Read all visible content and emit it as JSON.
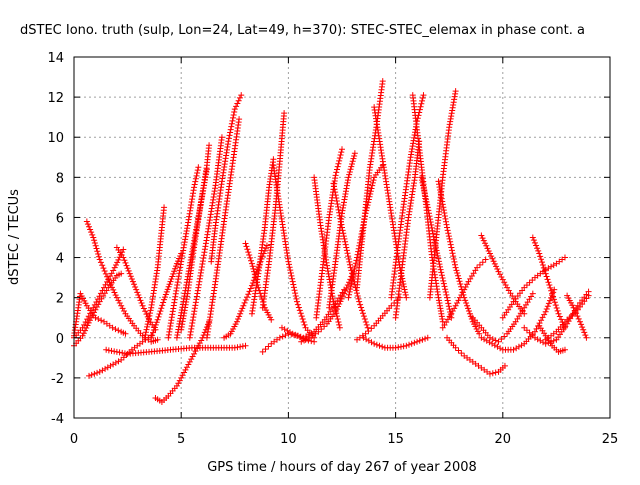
{
  "chart_data": {
    "type": "scatter",
    "title": "dSTEC Iono. truth (sulp, Lon=24, Lat=49, h=370): STEC-STEC_elemax in phase cont. a",
    "xlabel": "GPS time / hours of day 267 of year 2008",
    "ylabel": "dSTEC  / TECUs",
    "xlim": [
      0,
      25
    ],
    "ylim": [
      -4,
      14
    ],
    "x_ticks": [
      0,
      5,
      10,
      15,
      20,
      25
    ],
    "y_ticks": [
      -4,
      -2,
      0,
      2,
      4,
      6,
      8,
      10,
      12,
      14
    ],
    "x_tick_labels": [
      "0",
      "5",
      "10",
      "15",
      "20",
      "25"
    ],
    "y_tick_labels": [
      "-4",
      "-2",
      "0",
      "2",
      "4",
      "6",
      "8",
      "10",
      "12",
      "14"
    ],
    "grid": true,
    "marker": "+",
    "color": "#ff0000",
    "series": [
      {
        "x": [
          0.6,
          0.9,
          1.2,
          1.6,
          2.0,
          2.4,
          2.8,
          3.2,
          3.6,
          3.9
        ],
        "y": [
          5.8,
          5.0,
          3.9,
          2.9,
          2.0,
          1.2,
          0.6,
          0.1,
          -0.2,
          -0.1
        ]
      },
      {
        "x": [
          0.0,
          0.3,
          0.6,
          1.0,
          1.4,
          1.8,
          2.2,
          2.4
        ],
        "y": [
          0.1,
          2.2,
          1.6,
          1.0,
          0.8,
          0.5,
          0.3,
          0.2
        ]
      },
      {
        "x": [
          0.0,
          0.4,
          0.9,
          1.4,
          1.9,
          2.3
        ],
        "y": [
          0.0,
          0.5,
          1.5,
          2.5,
          3.5,
          4.4
        ]
      },
      {
        "x": [
          0.0,
          0.4,
          0.8,
          1.2,
          1.6,
          2.0,
          2.2
        ],
        "y": [
          -0.4,
          0.1,
          1.0,
          1.8,
          2.5,
          3.1,
          3.2
        ]
      },
      {
        "x": [
          2.0,
          2.3,
          2.6,
          2.9,
          3.2,
          3.5,
          3.8
        ],
        "y": [
          4.5,
          4.0,
          3.2,
          2.4,
          1.6,
          0.9,
          0.4
        ]
      },
      {
        "x": [
          0.7,
          1.2,
          1.7,
          2.2,
          2.7,
          3.2,
          3.6
        ],
        "y": [
          -1.9,
          -1.7,
          -1.4,
          -1.1,
          -0.6,
          -0.2,
          0.1
        ]
      },
      {
        "x": [
          1.5,
          2.5,
          3.5,
          4.5,
          5.5,
          6.5,
          7.5,
          8.0
        ],
        "y": [
          -0.6,
          -0.8,
          -0.7,
          -0.6,
          -0.5,
          -0.5,
          -0.5,
          -0.4
        ]
      },
      {
        "x": [
          3.8,
          4.1,
          4.4,
          4.8,
          5.2,
          5.6,
          6.0,
          6.3
        ],
        "y": [
          -3.0,
          -3.2,
          -2.9,
          -2.4,
          -1.6,
          -0.8,
          0.0,
          0.8
        ]
      },
      {
        "x": [
          3.3,
          3.6,
          3.9,
          4.1,
          4.2
        ],
        "y": [
          0.0,
          1.5,
          3.5,
          5.5,
          6.5
        ]
      },
      {
        "x": [
          3.6,
          3.9,
          4.2,
          4.5,
          4.8,
          5.0
        ],
        "y": [
          0.0,
          0.9,
          1.9,
          2.8,
          3.7,
          4.2
        ]
      },
      {
        "x": [
          4.4,
          4.7,
          5.0,
          5.3,
          5.6,
          5.8
        ],
        "y": [
          0.0,
          1.9,
          3.8,
          5.6,
          7.5,
          8.5
        ]
      },
      {
        "x": [
          4.8,
          5.1,
          5.4,
          5.7,
          6.0,
          6.2
        ],
        "y": [
          0.0,
          1.8,
          3.6,
          5.4,
          7.2,
          8.4
        ]
      },
      {
        "x": [
          5.0,
          5.3,
          5.6,
          5.9,
          6.2,
          6.3
        ],
        "y": [
          0.4,
          2.2,
          4.5,
          6.6,
          8.6,
          9.6
        ]
      },
      {
        "x": [
          5.4,
          5.8,
          6.2,
          6.6,
          6.9
        ],
        "y": [
          0.0,
          2.5,
          5.0,
          7.6,
          10.0
        ]
      },
      {
        "x": [
          6.2,
          6.6,
          7.0,
          7.4,
          7.7
        ],
        "y": [
          0.0,
          2.8,
          5.8,
          8.7,
          10.9
        ]
      },
      {
        "x": [
          6.4,
          6.6,
          6.9,
          7.2,
          7.5,
          7.8
        ],
        "y": [
          3.8,
          5.6,
          7.8,
          9.8,
          11.4,
          12.1
        ]
      },
      {
        "x": [
          7.0,
          7.3,
          7.6,
          7.9,
          8.3,
          8.7,
          9.0
        ],
        "y": [
          0.0,
          0.2,
          0.8,
          1.6,
          2.6,
          3.8,
          4.6
        ]
      },
      {
        "x": [
          8.0,
          8.3,
          8.6,
          8.9,
          9.2
        ],
        "y": [
          4.7,
          3.7,
          2.5,
          1.5,
          0.9
        ]
      },
      {
        "x": [
          8.8,
          9.2,
          9.6,
          10.0,
          10.4,
          10.8,
          11.2
        ],
        "y": [
          -0.7,
          -0.3,
          0.0,
          0.2,
          0.1,
          -0.1,
          -0.2
        ]
      },
      {
        "x": [
          8.3,
          8.6,
          8.9,
          9.1,
          9.3
        ],
        "y": [
          1.2,
          3.2,
          5.5,
          7.5,
          8.9
        ]
      },
      {
        "x": [
          8.8,
          9.1,
          9.4,
          9.6,
          9.8
        ],
        "y": [
          1.5,
          3.8,
          6.5,
          8.8,
          11.2
        ]
      },
      {
        "x": [
          9.3,
          9.6,
          10.0,
          10.4,
          10.8,
          11.2
        ],
        "y": [
          8.6,
          6.5,
          3.8,
          1.8,
          0.5,
          0.0
        ]
      },
      {
        "x": [
          9.7,
          10.2,
          10.7,
          11.2,
          11.7,
          12.2,
          12.6
        ],
        "y": [
          0.5,
          0.2,
          0.0,
          0.3,
          0.9,
          1.7,
          2.4
        ]
      },
      {
        "x": [
          10.6,
          11.0,
          11.4,
          11.8,
          12.2,
          12.6,
          13.0
        ],
        "y": [
          -0.2,
          0.0,
          0.3,
          0.7,
          1.3,
          2.2,
          3.2
        ]
      },
      {
        "x": [
          11.3,
          11.6,
          11.9,
          12.2,
          12.5
        ],
        "y": [
          1.0,
          3.5,
          6.0,
          8.1,
          9.4
        ]
      },
      {
        "x": [
          11.2,
          11.5,
          11.8,
          12.1,
          12.4
        ],
        "y": [
          8.0,
          5.6,
          3.6,
          1.8,
          0.5
        ]
      },
      {
        "x": [
          11.9,
          12.2,
          12.5,
          12.8,
          13.1
        ],
        "y": [
          1.5,
          3.8,
          6.2,
          8.0,
          9.2
        ]
      },
      {
        "x": [
          12.1,
          12.5,
          12.9,
          13.3,
          13.7
        ],
        "y": [
          7.7,
          5.5,
          3.5,
          1.8,
          0.5
        ]
      },
      {
        "x": [
          12.8,
          13.2,
          13.6,
          14.0,
          14.4
        ],
        "y": [
          2.0,
          4.0,
          6.2,
          8.0,
          8.6
        ]
      },
      {
        "x": [
          13.2,
          13.5,
          13.8,
          14.1,
          14.4
        ],
        "y": [
          2.5,
          5.5,
          8.5,
          10.5,
          12.8
        ]
      },
      {
        "x": [
          14.0,
          14.3,
          14.6,
          14.9,
          15.2,
          15.5
        ],
        "y": [
          11.5,
          9.5,
          7.5,
          5.5,
          3.5,
          2.0
        ]
      },
      {
        "x": [
          13.2,
          13.6,
          14.0,
          14.4,
          14.8,
          15.2
        ],
        "y": [
          -0.1,
          0.2,
          0.6,
          1.1,
          1.6,
          2.0
        ]
      },
      {
        "x": [
          13.5,
          14.0,
          14.5,
          15.0,
          15.5,
          16.0,
          16.5
        ],
        "y": [
          0.0,
          -0.3,
          -0.5,
          -0.5,
          -0.4,
          -0.2,
          0.0
        ]
      },
      {
        "x": [
          14.8,
          15.1,
          15.4,
          15.7,
          16.0,
          16.3
        ],
        "y": [
          2.0,
          4.5,
          6.8,
          9.0,
          10.8,
          12.1
        ]
      },
      {
        "x": [
          15.0,
          15.3,
          15.6,
          15.9,
          16.1
        ],
        "y": [
          1.0,
          3.5,
          6.0,
          8.0,
          9.8
        ]
      },
      {
        "x": [
          15.8,
          16.1,
          16.4,
          16.7,
          17.0,
          17.2
        ],
        "y": [
          12.1,
          9.5,
          6.8,
          4.0,
          2.0,
          0.8
        ]
      },
      {
        "x": [
          16.2,
          16.5,
          16.8,
          17.1,
          17.4,
          17.6
        ],
        "y": [
          8.0,
          6.5,
          4.9,
          3.4,
          2.0,
          1.0
        ]
      },
      {
        "x": [
          16.6,
          16.9,
          17.2,
          17.5,
          17.8
        ],
        "y": [
          2.0,
          5.0,
          8.0,
          10.5,
          12.3
        ]
      },
      {
        "x": [
          17.0,
          17.4,
          17.8,
          18.2,
          18.6,
          18.9
        ],
        "y": [
          7.8,
          5.5,
          3.5,
          2.0,
          0.8,
          0.2
        ]
      },
      {
        "x": [
          17.4,
          17.8,
          18.2,
          18.6,
          19.0,
          19.4,
          19.8,
          20.1
        ],
        "y": [
          0.0,
          -0.5,
          -0.9,
          -1.2,
          -1.5,
          -1.8,
          -1.7,
          -1.4
        ]
      },
      {
        "x": [
          17.2,
          17.6,
          18.0,
          18.4,
          18.8,
          19.2
        ],
        "y": [
          0.5,
          1.2,
          2.0,
          2.8,
          3.5,
          3.9
        ]
      },
      {
        "x": [
          19.0,
          19.4,
          19.8,
          20.2,
          20.6,
          21.0
        ],
        "y": [
          5.1,
          4.2,
          3.3,
          2.5,
          1.8,
          1.2
        ]
      },
      {
        "x": [
          18.6,
          19.0,
          19.4,
          19.8,
          20.2,
          20.6,
          21.0,
          21.4
        ],
        "y": [
          1.0,
          0.5,
          0.0,
          -0.2,
          0.2,
          0.8,
          1.5,
          2.2
        ]
      },
      {
        "x": [
          19.0,
          19.5,
          20.0,
          20.5,
          21.0,
          21.5,
          22.0,
          22.4
        ],
        "y": [
          0.0,
          -0.3,
          -0.6,
          -0.6,
          -0.3,
          0.3,
          1.3,
          2.4
        ]
      },
      {
        "x": [
          20.0,
          20.5,
          21.0,
          21.5,
          22.0,
          22.5,
          22.9
        ],
        "y": [
          1.0,
          1.8,
          2.5,
          3.0,
          3.4,
          3.7,
          4.0
        ]
      },
      {
        "x": [
          21.4,
          21.7,
          22.0,
          22.3,
          22.6,
          22.9
        ],
        "y": [
          5.0,
          4.2,
          3.2,
          2.2,
          1.2,
          0.5
        ]
      },
      {
        "x": [
          21.0,
          21.5,
          22.0,
          22.5,
          23.0,
          23.5,
          24.0
        ],
        "y": [
          0.5,
          0.0,
          -0.3,
          -0.1,
          0.7,
          1.6,
          2.3
        ]
      },
      {
        "x": [
          21.7,
          22.0,
          22.3,
          22.6,
          22.9
        ],
        "y": [
          0.6,
          0.1,
          -0.4,
          -0.7,
          -0.6
        ]
      },
      {
        "x": [
          22.0,
          22.5,
          23.0,
          23.5,
          24.0
        ],
        "y": [
          -0.1,
          0.3,
          0.9,
          1.4,
          2.1
        ]
      },
      {
        "x": [
          23.0,
          23.3,
          23.6,
          23.9
        ],
        "y": [
          2.1,
          1.5,
          0.8,
          0.0
        ]
      }
    ]
  }
}
